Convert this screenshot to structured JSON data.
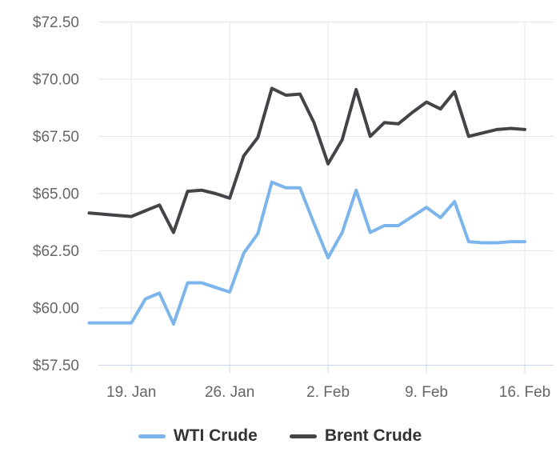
{
  "chart_data": {
    "type": "line",
    "title": "",
    "xlabel": "",
    "ylabel": "",
    "x": [
      "16. Jan",
      "17. Jan",
      "18. Jan",
      "19. Jan",
      "20. Jan",
      "21. Jan",
      "22. Jan",
      "23. Jan",
      "24. Jan",
      "25. Jan",
      "26. Jan",
      "27. Jan",
      "28. Jan",
      "29. Jan",
      "30. Jan",
      "31. Jan",
      "1. Feb",
      "2. Feb",
      "3. Feb",
      "4. Feb",
      "5. Feb",
      "6. Feb",
      "7. Feb",
      "8. Feb",
      "9. Feb",
      "10. Feb",
      "11. Feb",
      "12. Feb",
      "13. Feb",
      "14. Feb",
      "15. Feb",
      "16. Feb"
    ],
    "x_tick_labels": [
      "19. Jan",
      "26. Jan",
      "2. Feb",
      "9. Feb",
      "16. Feb"
    ],
    "x_tick_indices": [
      3,
      10,
      17,
      24,
      31
    ],
    "y_tick_labels": [
      "$57.50",
      "$60.00",
      "$62.50",
      "$65.00",
      "$67.50",
      "$70.00",
      "$72.50"
    ],
    "y_tick_values": [
      57.5,
      60,
      62.5,
      65,
      67.5,
      70,
      72.5
    ],
    "ylim": [
      57.5,
      72.5
    ],
    "grid": true,
    "legend_position": "bottom",
    "series": [
      {
        "name": "WTI Crude",
        "color": "#7cb5ec",
        "values": [
          59.35,
          59.35,
          59.35,
          59.35,
          60.4,
          60.65,
          59.3,
          61.1,
          61.1,
          60.9,
          60.7,
          62.4,
          63.25,
          65.5,
          65.25,
          65.25,
          63.7,
          62.2,
          63.3,
          65.15,
          63.3,
          63.6,
          63.6,
          64.0,
          64.4,
          63.95,
          64.65,
          62.9,
          62.85,
          62.85,
          62.9,
          62.9
        ]
      },
      {
        "name": "Brent Crude",
        "color": "#434348",
        "values": [
          64.15,
          64.1,
          64.05,
          64.0,
          64.25,
          64.5,
          63.3,
          65.1,
          65.15,
          65.0,
          64.8,
          66.65,
          67.45,
          69.6,
          69.3,
          69.35,
          68.1,
          66.3,
          67.35,
          69.55,
          67.5,
          68.1,
          68.05,
          68.55,
          69.0,
          68.7,
          69.45,
          67.5,
          67.65,
          67.8,
          67.85,
          67.8
        ]
      }
    ]
  },
  "legend": {
    "items": [
      {
        "label": "WTI Crude",
        "color": "#7cb5ec"
      },
      {
        "label": "Brent Crude",
        "color": "#434348"
      }
    ]
  },
  "colors": {
    "background": "#ffffff",
    "grid": "#e6e6e6",
    "axis_line": "#ccd6eb",
    "tick": "#ccd6eb",
    "axis_label": "#666666",
    "legend_text": "#333333"
  }
}
